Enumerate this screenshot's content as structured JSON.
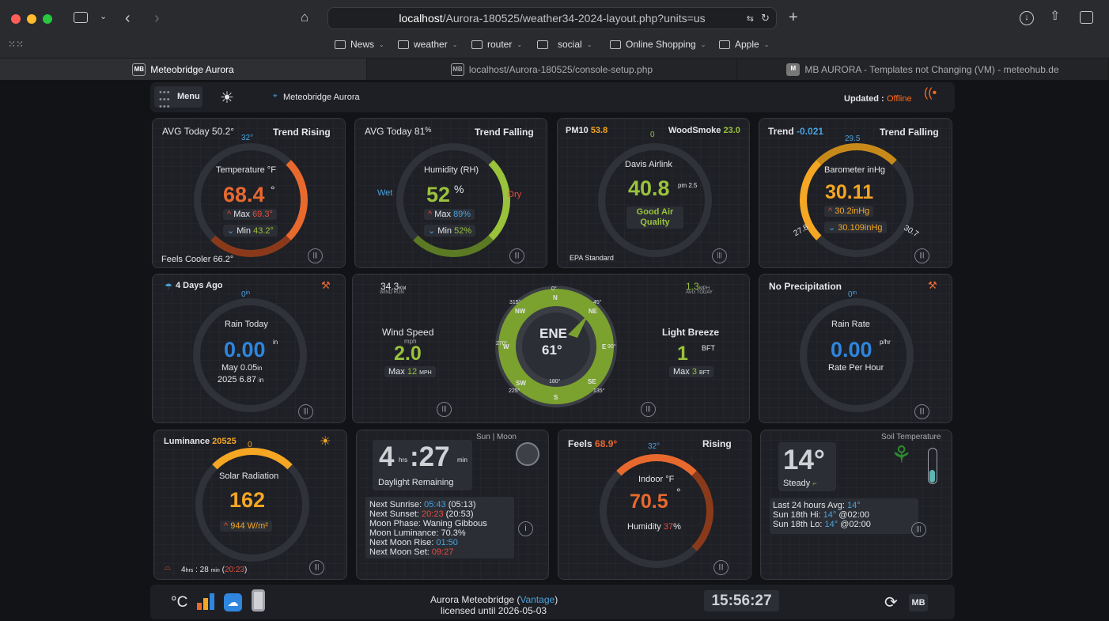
{
  "browser": {
    "url_host": "localhost",
    "url_path": "/Aurora-180525/weather34-2024-layout.php?units=us",
    "bookmarks": [
      "News",
      "weather",
      "router",
      "social",
      "Online Shopping",
      "Apple"
    ],
    "tabs": [
      {
        "label": "Meteobridge Aurora",
        "icon": "MB"
      },
      {
        "label": "localhost/Aurora-180525/console-setup.php",
        "icon": "MB"
      },
      {
        "label": "MB AURORA - Templates not Changing (VM) - meteohub.de",
        "icon": "M"
      }
    ]
  },
  "topbar": {
    "menu": "Menu",
    "station": "Meteobridge Aurora",
    "updated_label": "Updated :",
    "updated_value": "Offline"
  },
  "temperature": {
    "avg": "AVG Today 50.2°",
    "trend": "Trend Rising",
    "top": "32°",
    "title": "Temperature °F",
    "value": "68.4",
    "unit": "°",
    "max_label": "Max",
    "max": "69.3°",
    "min_label": "Min",
    "min": "43.2°",
    "feels": "Feels Cooler 66.2°"
  },
  "humidity": {
    "avg": "AVG Today 81",
    "avg_unit": "%",
    "trend": "Trend Falling",
    "title": "Humidity (RH)",
    "value": "52",
    "unit": "%",
    "wet": "Wet",
    "dry": "Dry",
    "max_label": "Max",
    "max": "89%",
    "min_label": "Min",
    "min": "52%"
  },
  "airlink": {
    "pm10_label": "PM10",
    "pm10": "53.8",
    "smoke_label": "WoodSmoke",
    "smoke": "23.0",
    "top": "0",
    "title": "Davis Airlink",
    "value": "40.8",
    "unit": "pm 2.5",
    "status": "Good Air Quality",
    "standard": "EPA Standard"
  },
  "barometer": {
    "trend_label": "Trend",
    "trend": "-0.021",
    "trend_text": "Trend Falling",
    "top": "29.5",
    "title": "Barometer inHg",
    "value": "30.11",
    "max": "30.2inHg",
    "min": "30.109inHg",
    "low": "27.8",
    "high": "30.7"
  },
  "rain": {
    "last": "4 Days Ago",
    "top": "0",
    "top_unit": "in",
    "title": "Rain Today",
    "value": "0.00",
    "unit": "in",
    "month": "May 0.05",
    "month_unit": "in",
    "year": "2025 6.87",
    "year_unit": "in"
  },
  "wind": {
    "run": "34.3",
    "run_unit": "KM",
    "run_label": "WIND RUN",
    "avg": "1.3",
    "avg_unit": "MPH",
    "avg_label": "AVG TODAY",
    "speed_label": "Wind Speed",
    "speed_unit": "mph",
    "speed": "2.0",
    "max_label": "Max",
    "max": "12",
    "max_unit": "MPH",
    "direction": "ENE",
    "degrees": "61°",
    "beaufort_label": "Light Breeze",
    "beaufort": "1",
    "bft": "BFT",
    "bft_max_label": "Max",
    "bft_max": "3",
    "bft_max_unit": "BFT",
    "compass": {
      "n": "N",
      "ne": "NE",
      "e": "E",
      "se": "SE",
      "s": "S",
      "sw": "SW",
      "w": "W",
      "nw": "NW",
      "d0": "0°",
      "d45": "45°",
      "d90": "90°",
      "d135": "135°",
      "d180": "180°",
      "d225": "225°",
      "d270": "270°",
      "d315": "315°"
    }
  },
  "rainrate": {
    "title_top": "No Precipitation",
    "top": "0",
    "top_unit": "in",
    "title": "Rain Rate",
    "value": "0.00",
    "unit": "p/hr",
    "label": "Rate Per Hour"
  },
  "solar": {
    "lum_label": "Luminance",
    "lum": "20525",
    "top": "0",
    "title": "Solar Radiation",
    "value": "162",
    "wm": "944 W/m²",
    "daylight_h": "4",
    "daylight_hrs": "hrs",
    "daylight_m": "28",
    "daylight_min": "min",
    "daylight_end": "20:23"
  },
  "sunmoon": {
    "title": "Sun | Moon",
    "hours": "4",
    "hrs": "hrs",
    "minutes": ":27",
    "min": "min",
    "remaining": "Daylight Remaining",
    "rows": [
      {
        "label": "Next Sunrise:",
        "v1": "05:43",
        "v2": "(05:13)"
      },
      {
        "label": "Next Sunset:",
        "v1": "20:23",
        "v2": "(20:53)"
      },
      {
        "label": "Moon Phase: Waning Gibbous",
        "v1": "",
        "v2": ""
      },
      {
        "label": "Moon Luminance: 70.3%",
        "v1": "",
        "v2": ""
      },
      {
        "label": "Next Moon Rise:",
        "v1": "01:50",
        "v2": ""
      },
      {
        "label": "Next Moon Set:",
        "v1": "09:27",
        "v2": ""
      }
    ]
  },
  "indoor": {
    "feels_label": "Feels",
    "feels": "68.9°",
    "trend": "Rising",
    "top": "32°",
    "title": "Indoor °F",
    "value": "70.5",
    "unit": "°",
    "hum_label": "Humidity",
    "hum": "37",
    "hum_unit": "%"
  },
  "soil": {
    "title": "Soil Temperature",
    "value": "14°",
    "status": "Steady",
    "avg_label": "Last 24 hours Avg:",
    "avg": "14°",
    "hi_label": "Sun 18th Hi:",
    "hi": "14°",
    "hi_time": "@02:00",
    "lo_label": "Sun 18th Lo:",
    "lo": "14°",
    "lo_time": "@02:00"
  },
  "footer": {
    "unit": "°C",
    "line1": "Aurora Meteobridge (",
    "brand": "Vantage",
    "line1_end": ")",
    "line2": "licensed until 2026-05-03",
    "clock": "15:56:27",
    "mb": "MB"
  },
  "colors": {
    "orange": "#e8692e",
    "green": "#9ac23b",
    "blue": "#2e86de",
    "gold": "#f5a623",
    "red": "#e84c3d",
    "offline": "#ff6a1a"
  }
}
